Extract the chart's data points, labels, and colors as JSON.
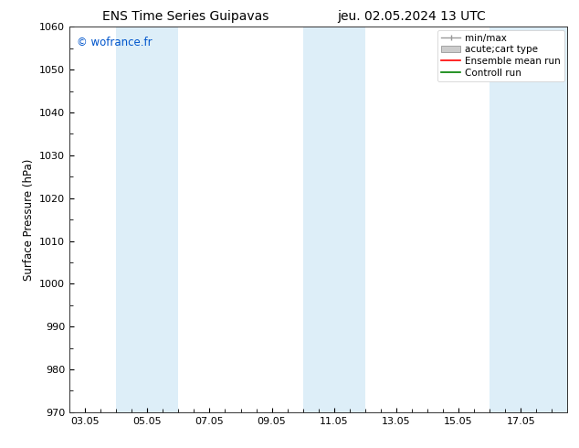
{
  "title_left": "ENS Time Series Guipavas",
  "title_right": "jeu. 02.05.2024 13 UTC",
  "ylabel": "Surface Pressure (hPa)",
  "ylim": [
    970,
    1060
  ],
  "yticks": [
    970,
    980,
    990,
    1000,
    1010,
    1020,
    1030,
    1040,
    1050,
    1060
  ],
  "xtick_labels": [
    "03.05",
    "05.05",
    "07.05",
    "09.05",
    "11.05",
    "13.05",
    "15.05",
    "17.05"
  ],
  "xtick_positions": [
    0,
    2,
    4,
    6,
    8,
    10,
    12,
    14
  ],
  "xlim": [
    -0.5,
    15.5
  ],
  "watermark": "© wofrance.fr",
  "watermark_color": "#0055cc",
  "bg_color": "#ffffff",
  "shaded_bands": [
    {
      "x_start": 1.0,
      "x_end": 3.0,
      "color": "#ddeef8"
    },
    {
      "x_start": 7.0,
      "x_end": 9.0,
      "color": "#ddeef8"
    },
    {
      "x_start": 13.0,
      "x_end": 15.5,
      "color": "#ddeef8"
    }
  ],
  "legend_entries": [
    {
      "label": "min/max",
      "type": "errorbar",
      "color": "#aaaaaa"
    },
    {
      "label": "acute;cart type",
      "type": "box",
      "facecolor": "#cccccc",
      "edgecolor": "#888888"
    },
    {
      "label": "Ensemble mean run",
      "type": "line",
      "color": "#ff0000"
    },
    {
      "label": "Controll run",
      "type": "line",
      "color": "#008000"
    }
  ],
  "title_fontsize": 10,
  "tick_fontsize": 8,
  "ylabel_fontsize": 8.5,
  "legend_fontsize": 7.5
}
